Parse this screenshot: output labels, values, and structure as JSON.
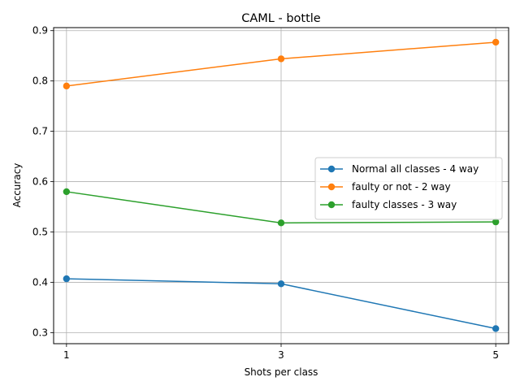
{
  "chart_data": {
    "type": "line",
    "title": "CAML - bottle",
    "xlabel": "Shots per class",
    "ylabel": "Accuracy",
    "x": [
      1,
      3,
      5
    ],
    "x_ticks": [
      "1",
      "3",
      "5"
    ],
    "xlim": [
      0.88,
      5.12
    ],
    "ylim": [
      0.278,
      0.906
    ],
    "y_ticks": [
      "0.3",
      "0.4",
      "0.5",
      "0.6",
      "0.7",
      "0.8",
      "0.9"
    ],
    "grid": true,
    "legend_position": "center-right",
    "series": [
      {
        "name": "Normal all classes - 4 way",
        "color": "#1f77b4",
        "values": [
          0.407,
          0.397,
          0.308
        ]
      },
      {
        "name": "faulty or not - 2 way",
        "color": "#ff7f0e",
        "values": [
          0.79,
          0.844,
          0.877
        ]
      },
      {
        "name": "faulty classes - 3 way",
        "color": "#2ca02c",
        "values": [
          0.58,
          0.518,
          0.52
        ]
      }
    ]
  }
}
